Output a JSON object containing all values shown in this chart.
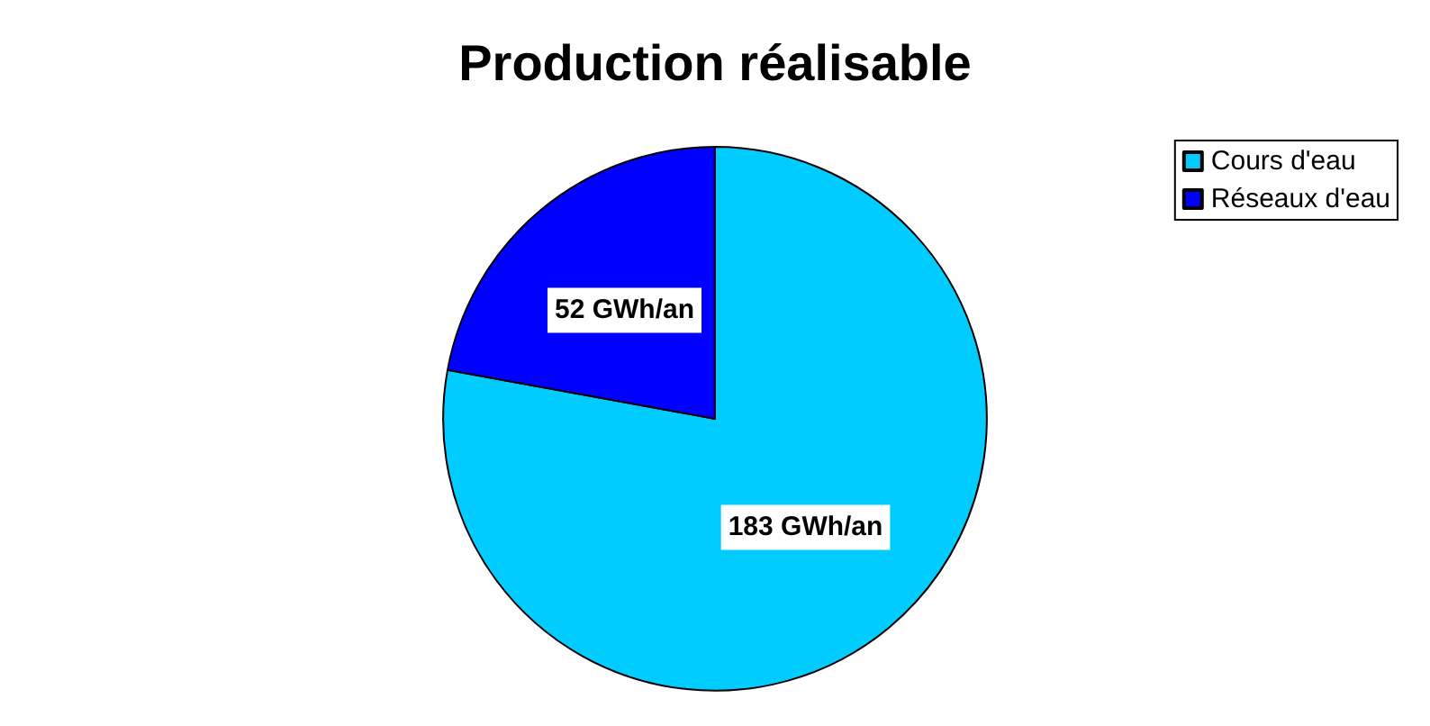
{
  "chart_data": {
    "type": "pie",
    "title": "Production réalisable",
    "categories": [
      "Cours d'eau",
      "Réseaux d'eau"
    ],
    "values": [
      183,
      52
    ],
    "colors": [
      "#00ccff",
      "#0000ff"
    ],
    "value_labels": [
      "183 GWh/an",
      "52 GWh/an"
    ],
    "legend": "top right"
  }
}
